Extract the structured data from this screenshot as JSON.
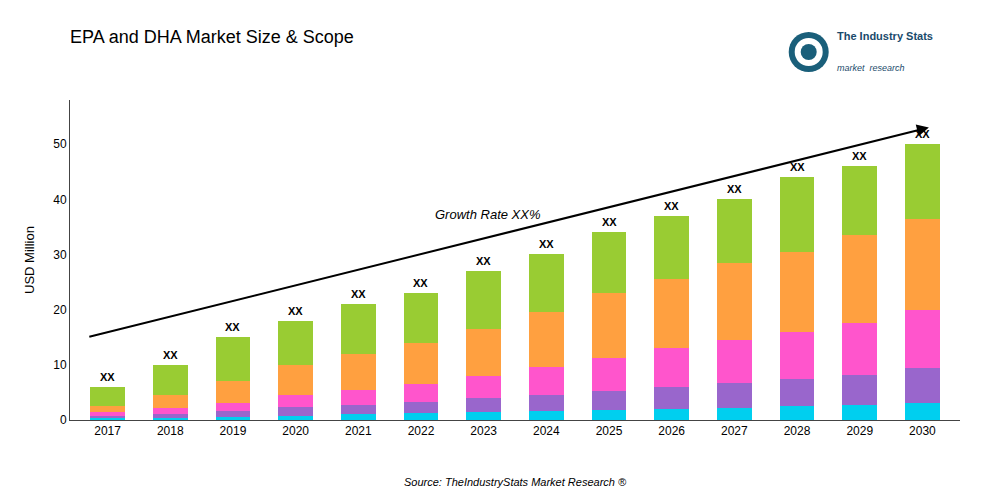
{
  "chart_data": {
    "type": "bar",
    "stacked": true,
    "title": "EPA and DHA Market Size & Scope",
    "ylabel": "USD Million",
    "categories": [
      "2017",
      "2018",
      "2019",
      "2020",
      "2021",
      "2022",
      "2023",
      "2024",
      "2025",
      "2026",
      "2027",
      "2028",
      "2029",
      "2030"
    ],
    "series": [
      {
        "color": "#00CFEF",
        "values": [
          0.3,
          0.4,
          0.6,
          0.8,
          1.0,
          1.2,
          1.4,
          1.6,
          1.8,
          2.0,
          2.2,
          2.5,
          2.7,
          3.0
        ]
      },
      {
        "color": "#9966CC",
        "values": [
          0.4,
          0.7,
          1.0,
          1.5,
          1.8,
          2.1,
          2.5,
          3.0,
          3.5,
          4.0,
          4.5,
          5.0,
          5.5,
          6.5
        ]
      },
      {
        "color": "#FF55CC",
        "values": [
          0.7,
          1.0,
          1.5,
          2.2,
          2.7,
          3.2,
          4.0,
          5.0,
          6.0,
          7.0,
          7.8,
          8.5,
          9.3,
          10.5
        ]
      },
      {
        "color": "#FFA040",
        "values": [
          1.1,
          2.4,
          3.9,
          5.5,
          6.5,
          7.5,
          8.6,
          9.9,
          11.7,
          12.5,
          14.0,
          14.5,
          16.0,
          16.5
        ]
      },
      {
        "color": "#99CC33",
        "values": [
          3.5,
          5.5,
          8.0,
          8.0,
          9.0,
          9.0,
          10.5,
          10.5,
          11.0,
          11.5,
          11.5,
          13.5,
          12.5,
          13.5
        ]
      }
    ],
    "ylim": [
      0,
      58
    ],
    "yticks": [
      0,
      10,
      20,
      30,
      40,
      50
    ],
    "grid": false,
    "annotations": [
      {
        "text": "XX",
        "x": "2017"
      },
      {
        "text": "XX",
        "x": "2018"
      },
      {
        "text": "XX",
        "x": "2019"
      },
      {
        "text": "XX",
        "x": "2020"
      },
      {
        "text": "XX",
        "x": "2021"
      },
      {
        "text": "XX",
        "x": "2022"
      },
      {
        "text": "XX",
        "x": "2023"
      },
      {
        "text": "XX",
        "x": "2024"
      },
      {
        "text": "XX",
        "x": "2025"
      },
      {
        "text": "XX",
        "x": "2026"
      },
      {
        "text": "XX",
        "x": "2027"
      },
      {
        "text": "XX",
        "x": "2028"
      },
      {
        "text": "XX",
        "x": "2029"
      },
      {
        "text": "XX",
        "x": "2030"
      },
      {
        "text": "Growth Rate XX%"
      },
      {
        "text": "The Industry Stats"
      },
      {
        "text": "market  research"
      },
      {
        "text": "Source: TheIndustryStats Market Research ®"
      }
    ]
  }
}
